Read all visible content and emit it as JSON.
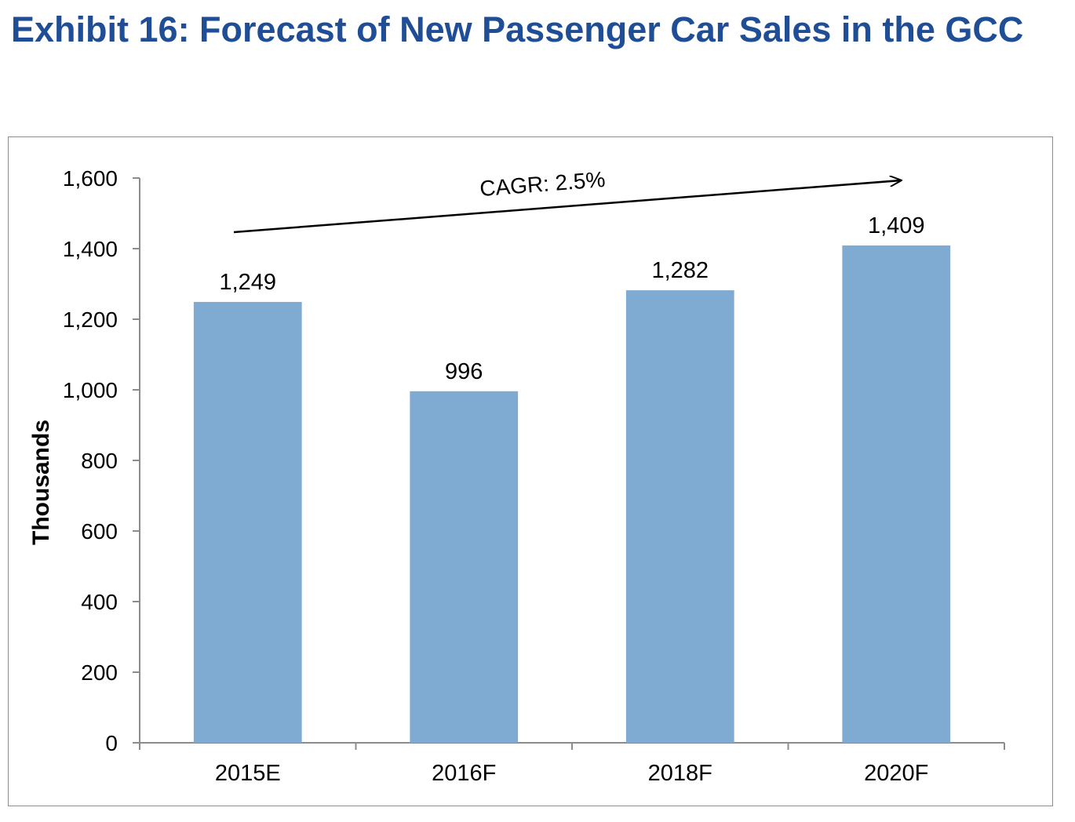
{
  "chart_data": {
    "type": "bar",
    "title": "Exhibit 16:  Forecast of New Passenger Car Sales in the GCC",
    "xlabel": "",
    "ylabel": "Thousands",
    "categories": [
      "2015E",
      "2016F",
      "2018F",
      "2020F"
    ],
    "values": [
      1249,
      996,
      1282,
      1409
    ],
    "data_labels": [
      "1,249",
      "996",
      "1,282",
      "1,409"
    ],
    "ylim": [
      0,
      1600
    ],
    "yticks": [
      0,
      200,
      400,
      600,
      800,
      1000,
      1200,
      1400,
      1600
    ],
    "ytick_labels": [
      "0",
      "200",
      "400",
      "600",
      "800",
      "1,000",
      "1,200",
      "1,400",
      "1,600"
    ],
    "annotation": "CAGR: 2.5%",
    "bar_color": "#7faad1",
    "title_color": "#1f4e96",
    "grid": false,
    "legend": "none"
  }
}
